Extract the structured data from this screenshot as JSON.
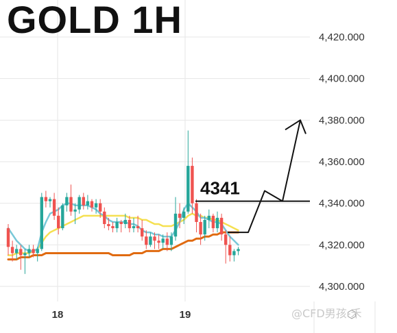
{
  "title": "GOLD 1H",
  "watermark": "@CFD男孩-禾",
  "colors": {
    "up": "#26a69a",
    "down": "#ef5350",
    "ema_fast": "#78c8d8",
    "ema_mid": "#f5e050",
    "ema_slow": "#e06a10",
    "grid": "#e6e6e6",
    "annotation": "#111111"
  },
  "chart_data": {
    "type": "candlestick",
    "title": "GOLD 1H",
    "ylim": [
      4293,
      4427
    ],
    "y_ticks": [
      "4,300.000",
      "4,320.000",
      "4,340.000",
      "4,360.000",
      "4,380.000",
      "4,400.000",
      "4,420.000"
    ],
    "x_ticks": [
      "18",
      "19"
    ],
    "grid": true,
    "candles": [
      [
        4328,
        4330,
        4315,
        4319
      ],
      [
        4319,
        4322,
        4312,
        4316
      ],
      [
        4316,
        4320,
        4313,
        4318
      ],
      [
        4318,
        4320,
        4308,
        4315
      ],
      [
        4315,
        4318,
        4306,
        4316
      ],
      [
        4316,
        4320,
        4314,
        4318
      ],
      [
        4318,
        4320,
        4314,
        4316
      ],
      [
        4316,
        4319,
        4312,
        4318
      ],
      [
        4318,
        4345,
        4317,
        4343
      ],
      [
        4343,
        4346,
        4338,
        4341
      ],
      [
        4341,
        4343,
        4338,
        4342
      ],
      [
        4342,
        4345,
        4332,
        4334
      ],
      [
        4334,
        4338,
        4325,
        4328
      ],
      [
        4328,
        4340,
        4327,
        4339
      ],
      [
        4339,
        4345,
        4336,
        4343
      ],
      [
        4343,
        4349,
        4334,
        4336
      ],
      [
        4336,
        4340,
        4330,
        4337
      ],
      [
        4337,
        4344,
        4335,
        4343
      ],
      [
        4343,
        4345,
        4337,
        4339
      ],
      [
        4339,
        4344,
        4337,
        4341
      ],
      [
        4341,
        4342,
        4336,
        4338
      ],
      [
        4338,
        4342,
        4335,
        4340
      ],
      [
        4340,
        4342,
        4333,
        4336
      ],
      [
        4336,
        4338,
        4328,
        4330
      ],
      [
        4330,
        4333,
        4327,
        4329
      ],
      [
        4329,
        4331,
        4326,
        4328
      ],
      [
        4328,
        4333,
        4326,
        4331
      ],
      [
        4331,
        4332,
        4326,
        4330
      ],
      [
        4330,
        4335,
        4328,
        4332
      ],
      [
        4332,
        4334,
        4326,
        4328
      ],
      [
        4328,
        4333,
        4326,
        4329
      ],
      [
        4329,
        4334,
        4326,
        4328
      ],
      [
        4328,
        4332,
        4322,
        4324
      ],
      [
        4324,
        4327,
        4318,
        4320
      ],
      [
        4320,
        4326,
        4319,
        4324
      ],
      [
        4324,
        4326,
        4318,
        4322
      ],
      [
        4322,
        4325,
        4318,
        4321
      ],
      [
        4321,
        4325,
        4318,
        4323
      ],
      [
        4323,
        4326,
        4317,
        4320
      ],
      [
        4320,
        4326,
        4317,
        4324
      ],
      [
        4324,
        4343,
        4322,
        4335
      ],
      [
        4335,
        4340,
        4328,
        4333
      ],
      [
        4333,
        4338,
        4330,
        4336
      ],
      [
        4336,
        4375,
        4335,
        4358
      ],
      [
        4358,
        4362,
        4335,
        4340
      ],
      [
        4340,
        4342,
        4326,
        4331
      ],
      [
        4331,
        4335,
        4320,
        4325
      ],
      [
        4325,
        4334,
        4322,
        4332
      ],
      [
        4332,
        4337,
        4328,
        4334
      ],
      [
        4334,
        4335,
        4326,
        4328
      ],
      [
        4328,
        4336,
        4326,
        4333
      ],
      [
        4333,
        4335,
        4322,
        4325
      ],
      [
        4325,
        4327,
        4311,
        4320
      ],
      [
        4320,
        4324,
        4312,
        4315
      ],
      [
        4315,
        4318,
        4312,
        4317
      ],
      [
        4317,
        4319,
        4315,
        4318
      ]
    ],
    "ema_fast": [
      4328,
      4325,
      4322,
      4320,
      4318,
      4317,
      4317,
      4318,
      4326,
      4331,
      4335,
      4336,
      4337,
      4339,
      4340,
      4340,
      4339,
      4339,
      4339,
      4339,
      4338,
      4337,
      4335,
      4334,
      4332,
      4331,
      4331,
      4331,
      4331,
      4330,
      4330,
      4329,
      4327,
      4326,
      4326,
      4325,
      4325,
      4324,
      4324,
      4324,
      4327,
      4331,
      4337,
      4340,
      4338,
      4336,
      4333,
      4333,
      4332,
      4331,
      4331,
      4330,
      4327,
      4324,
      4322,
      4320
    ],
    "ema_mid": [
      4315,
      4315,
      4316,
      4316,
      4316,
      4316,
      4317,
      4318,
      4321,
      4324,
      4326,
      4327,
      4328,
      4329,
      4330,
      4331,
      4332,
      4333,
      4334,
      4334,
      4334,
      4334,
      4334,
      4334,
      4334,
      4334,
      4334,
      4334,
      4334,
      4333,
      4333,
      4333,
      4332,
      4332,
      4331,
      4330,
      4330,
      4329,
      4329,
      4329,
      4330,
      4331,
      4332,
      4334,
      4335,
      4334,
      4334,
      4333,
      4333,
      4332,
      4332,
      4331,
      4330,
      4329,
      4328,
      4327
    ],
    "ema_slow": [
      4313,
      4313,
      4313,
      4314,
      4314,
      4314,
      4315,
      4315,
      4315,
      4316,
      4316,
      4316,
      4316,
      4316,
      4316,
      4316,
      4316,
      4316,
      4316,
      4316,
      4316,
      4316,
      4316,
      4316,
      4316,
      4315,
      4315,
      4315,
      4315,
      4315,
      4316,
      4316,
      4316,
      4317,
      4317,
      4317,
      4317,
      4318,
      4318,
      4318,
      4319,
      4320,
      4321,
      4322,
      4322,
      4323,
      4323,
      4324,
      4324,
      4325,
      4325,
      4326,
      4326,
      4326,
      4326,
      4326
    ],
    "annotations": {
      "level": {
        "value": 4341,
        "label": "4341"
      },
      "projection": [
        [
          4326,
          0
        ],
        [
          4346,
          1
        ],
        [
          4341,
          2
        ],
        [
          4380,
          3
        ]
      ]
    }
  }
}
